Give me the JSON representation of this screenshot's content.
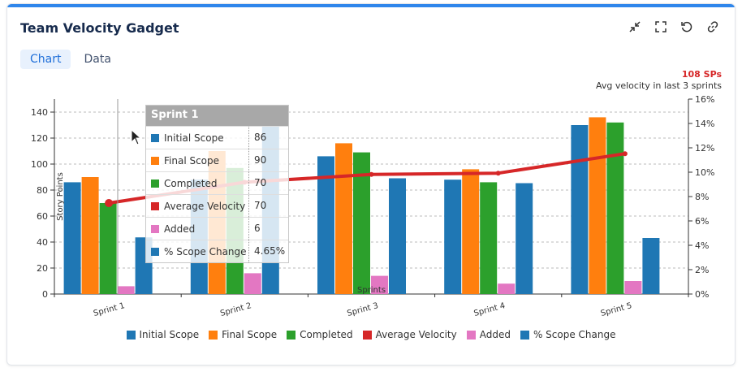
{
  "header": {
    "title": "Team Velocity Gadget",
    "actions": [
      {
        "name": "minimize-icon"
      },
      {
        "name": "fullscreen-icon"
      },
      {
        "name": "refresh-icon"
      },
      {
        "name": "link-icon"
      }
    ]
  },
  "tabs": [
    {
      "label": "Chart",
      "active": true
    },
    {
      "label": "Data",
      "active": false
    }
  ],
  "summary": {
    "value": "108 SPs",
    "label": "Avg velocity in last 3 sprints"
  },
  "tooltip": {
    "title": "Sprint 1",
    "rows": [
      {
        "label": "Initial Scope",
        "value": "86",
        "color": "#1f77b4"
      },
      {
        "label": "Final Scope",
        "value": "90",
        "color": "#ff7f0e"
      },
      {
        "label": "Completed",
        "value": "70",
        "color": "#2ca02c"
      },
      {
        "label": "Average Velocity",
        "value": "70",
        "color": "#d62728"
      },
      {
        "label": "Added",
        "value": "6",
        "color": "#e377c2"
      },
      {
        "label": "% Scope Change",
        "value": "4.65%",
        "color": "#1f77b4"
      }
    ]
  },
  "chart_data": {
    "type": "bar",
    "categories": [
      "Sprint 1",
      "Sprint 2",
      "Sprint 3",
      "Sprint 4",
      "Sprint 5"
    ],
    "xlabel": "Sprints",
    "ylabel": "Story Points",
    "ylim": [
      0,
      150
    ],
    "yticks": [
      0,
      20,
      40,
      60,
      80,
      100,
      120,
      140
    ],
    "y2lim": [
      0,
      16
    ],
    "y2ticks": [
      "0%",
      "2%",
      "4%",
      "6%",
      "8%",
      "10%",
      "12%",
      "14%",
      "16%"
    ],
    "grid": true,
    "legend": "bottom",
    "series": [
      {
        "name": "Initial Scope",
        "color": "#1f77b4",
        "values": [
          86,
          88,
          106,
          88,
          130
        ],
        "axis": "left"
      },
      {
        "name": "Final Scope",
        "color": "#ff7f0e",
        "values": [
          90,
          110,
          116,
          96,
          136
        ],
        "axis": "left"
      },
      {
        "name": "Completed",
        "color": "#2ca02c",
        "values": [
          70,
          97,
          109,
          86,
          132
        ],
        "axis": "left"
      },
      {
        "name": "Average Velocity",
        "color": "#d62728",
        "values": [
          70,
          86,
          92,
          93,
          108
        ],
        "type": "line",
        "axis": "left"
      },
      {
        "name": "Added",
        "color": "#e377c2",
        "values": [
          6,
          16,
          14,
          8,
          10
        ],
        "axis": "left"
      },
      {
        "name": "% Scope Change",
        "color": "#1f77b4",
        "values": [
          4.65,
          14.6,
          9.5,
          9.1,
          4.6
        ],
        "axis": "right"
      }
    ]
  }
}
